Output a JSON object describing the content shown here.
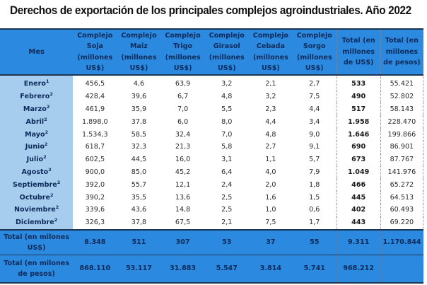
{
  "title": "Derechos de exportación de los principales complejos agroindustriales. Año 2022",
  "colors": {
    "header_bg": "#2b8ae0",
    "header_text": "#0d2a5a",
    "month_col_bg": "#a6cdee",
    "border": "#1b3552"
  },
  "headers": [
    "Mes",
    "Complejo Soja (millones US$)",
    "Complejo Maiz (millones US$)",
    "Complejo Trigo (millones US$)",
    "Complejo Girasol (millones US$)",
    "Complejo Cebada (millones US$)",
    "Complejo Sorgo (millones US$)",
    "Total (en millones de US$)",
    "Total (en millones de pesos)"
  ],
  "rows": [
    {
      "mes": "Enero",
      "nota": "1",
      "soja": "456,5",
      "maiz": "4,6",
      "trigo": "63,9",
      "girasol": "3,2",
      "cebada": "2,1",
      "sorgo": "2,7",
      "total_usd": "533",
      "total_pesos": "55.421"
    },
    {
      "mes": "Febrero",
      "nota": "2",
      "soja": "428,4",
      "maiz": "39,6",
      "trigo": "6,7",
      "girasol": "4,8",
      "cebada": "3,2",
      "sorgo": "7,5",
      "total_usd": "490",
      "total_pesos": "52.802"
    },
    {
      "mes": "Marzo",
      "nota": "2",
      "soja": "461,9",
      "maiz": "35,9",
      "trigo": "7,0",
      "girasol": "5,5",
      "cebada": "2,3",
      "sorgo": "4,4",
      "total_usd": "517",
      "total_pesos": "58.143"
    },
    {
      "mes": "Abril",
      "nota": "2",
      "soja": "1.898,0",
      "maiz": "37,8",
      "trigo": "6,0",
      "girasol": "8,0",
      "cebada": "4,4",
      "sorgo": "3,4",
      "total_usd": "1.958",
      "total_pesos": "228.470"
    },
    {
      "mes": "Mayo",
      "nota": "2",
      "soja": "1.534,3",
      "maiz": "58,5",
      "trigo": "32,4",
      "girasol": "7,0",
      "cebada": "4,8",
      "sorgo": "9,0",
      "total_usd": "1.646",
      "total_pesos": "199.866"
    },
    {
      "mes": "Junio",
      "nota": "2",
      "soja": "618,7",
      "maiz": "32,3",
      "trigo": "21,3",
      "girasol": "5,8",
      "cebada": "2,7",
      "sorgo": "9,1",
      "total_usd": "690",
      "total_pesos": "86.901"
    },
    {
      "mes": "Julio",
      "nota": "2",
      "soja": "602,5",
      "maiz": "44,5",
      "trigo": "16,0",
      "girasol": "3,1",
      "cebada": "1,1",
      "sorgo": "5,7",
      "total_usd": "673",
      "total_pesos": "87.767"
    },
    {
      "mes": "Agosto",
      "nota": "2",
      "soja": "900,0",
      "maiz": "85,0",
      "trigo": "45,2",
      "girasol": "6,4",
      "cebada": "4,0",
      "sorgo": "7,9",
      "total_usd": "1.049",
      "total_pesos": "141.976"
    },
    {
      "mes": "Septiembre",
      "nota": "2",
      "soja": "392,0",
      "maiz": "55,7",
      "trigo": "12,1",
      "girasol": "2,4",
      "cebada": "2,0",
      "sorgo": "1,8",
      "total_usd": "466",
      "total_pesos": "65.272"
    },
    {
      "mes": "Octubre",
      "nota": "2",
      "soja": "390,2",
      "maiz": "35,5",
      "trigo": "13,6",
      "girasol": "2,5",
      "cebada": "1,6",
      "sorgo": "1,5",
      "total_usd": "445",
      "total_pesos": "64.513"
    },
    {
      "mes": "Noviembre",
      "nota": "2",
      "soja": "339,6",
      "maiz": "43,6",
      "trigo": "14,8",
      "girasol": "2,5",
      "cebada": "1,0",
      "sorgo": "0,6",
      "total_usd": "402",
      "total_pesos": "60.493"
    },
    {
      "mes": "Diciembre",
      "nota": "2",
      "soja": "326,3",
      "maiz": "37,8",
      "trigo": "67,5",
      "girasol": "2,1",
      "cebada": "7,5",
      "sorgo": "1,7",
      "total_usd": "443",
      "total_pesos": "69.220"
    }
  ],
  "total_usd_row": {
    "label": "Total (en milones US$)",
    "soja": "8.348",
    "maiz": "511",
    "trigo": "307",
    "girasol": "53",
    "cebada": "37",
    "sorgo": "55",
    "total_usd": "9.311",
    "total_pesos": "1.170.844"
  },
  "total_pesos_row": {
    "label": "Total (en milones de pesos)",
    "soja": "868.110",
    "maiz": "53.117",
    "trigo": "31.883",
    "girasol": "5.547",
    "cebada": "3.814",
    "sorgo": "5.741",
    "total_usd": "968.212",
    "total_pesos": ""
  }
}
